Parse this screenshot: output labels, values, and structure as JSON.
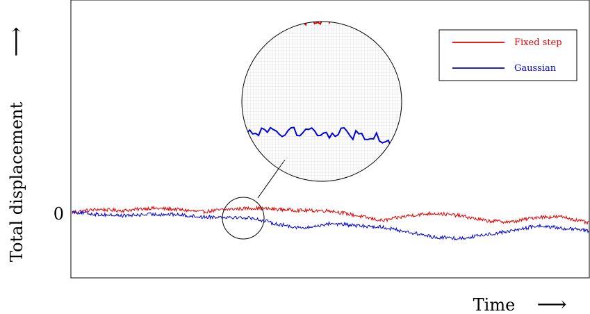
{
  "chart_data": {
    "type": "line",
    "xlabel": "Time",
    "ylabel": "Total displacement",
    "yticks": [
      {
        "value": 0,
        "label": "0"
      }
    ],
    "ylim": [
      -0.55,
      1.55
    ],
    "xlim": [
      0,
      1000
    ],
    "grid": false,
    "legend_position": "top-right",
    "x": [
      0,
      50,
      100,
      150,
      200,
      250,
      300,
      350,
      400,
      450,
      500,
      550,
      600,
      650,
      700,
      750,
      800,
      850,
      900,
      950,
      1000
    ],
    "series": [
      {
        "name": "Fixed step",
        "color": "#e00000",
        "values": [
          0.0,
          0.02,
          0.01,
          0.03,
          0.02,
          0.0,
          0.02,
          0.03,
          0.02,
          0.01,
          0.01,
          -0.03,
          -0.07,
          -0.03,
          -0.01,
          -0.03,
          -0.07,
          -0.08,
          -0.04,
          -0.04,
          -0.09
        ]
      },
      {
        "name": "Gaussian",
        "color": "#0000d8",
        "values": [
          0.0,
          -0.02,
          -0.03,
          -0.02,
          -0.02,
          -0.04,
          -0.04,
          -0.05,
          -0.1,
          -0.13,
          -0.09,
          -0.11,
          -0.12,
          -0.16,
          -0.2,
          -0.21,
          -0.18,
          -0.15,
          -0.11,
          -0.13,
          -0.15
        ]
      }
    ],
    "annotations": [
      {
        "type": "magnifier",
        "x_center": 335,
        "y_center": -0.03
      }
    ]
  },
  "legend": {
    "items": [
      {
        "label": "Fixed step",
        "color": "#e00000"
      },
      {
        "label": "Gaussian",
        "color": "#0000d8"
      }
    ]
  },
  "axes": {
    "x_arrow": "⟶",
    "y_arrow": "⟶"
  }
}
